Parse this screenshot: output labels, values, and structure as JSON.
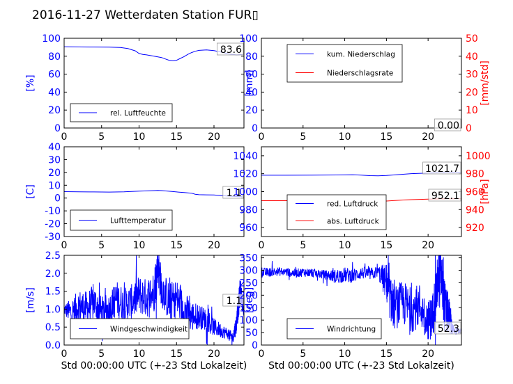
{
  "title": "2016-11-27 Wetterdaten Station FUR▯",
  "colors": {
    "primary": "#0000ff",
    "secondary": "#ff0000",
    "frame": "#000000"
  },
  "chart_data": [
    {
      "type": "line",
      "xlim": [
        0,
        24
      ],
      "ylim": [
        0,
        100
      ],
      "xticks": [
        0,
        5,
        10,
        15,
        20
      ],
      "yticks": [
        0,
        20,
        40,
        60,
        80,
        100
      ],
      "ylabel": "[%]",
      "xlabel": "",
      "legend": {
        "location": "lower-left",
        "entries": [
          "rel. Luftfeuchte"
        ]
      },
      "value_box": "83.6",
      "series": [
        {
          "name": "rel. Luftfeuchte",
          "color": "#0000ff",
          "axis": "left",
          "x": [
            0,
            2,
            4,
            6,
            7.5,
            8.5,
            9.5,
            10,
            10.5,
            11,
            12,
            13,
            13.5,
            14,
            14.5,
            15,
            15.5,
            16,
            16.5,
            17,
            17.5,
            18,
            19,
            20,
            21,
            22,
            23,
            23.8
          ],
          "y": [
            90.5,
            90.3,
            90.2,
            90.1,
            89.8,
            88.5,
            86,
            83,
            82,
            81.5,
            80,
            78.5,
            77,
            75.5,
            75,
            75.5,
            77.5,
            79.5,
            82,
            84,
            85.5,
            86.5,
            87,
            86.3,
            84.5,
            82.5,
            81.5,
            82
          ]
        }
      ]
    },
    {
      "type": "line",
      "xlim": [
        0,
        24
      ],
      "ylim": [
        0,
        100
      ],
      "y2lim": [
        0,
        50
      ],
      "xticks": [
        0,
        5,
        10,
        15,
        20
      ],
      "yticks": [
        0,
        20,
        40,
        60,
        80,
        100
      ],
      "y2ticks": [
        0,
        10,
        20,
        30,
        40,
        50
      ],
      "ylabel": "[mm]",
      "y2label": "[mm/std]",
      "xlabel": "",
      "legend": {
        "location": "upper-left",
        "entries": [
          "kum. Niederschlag",
          "Niederschlagsrate"
        ]
      },
      "value_box": "0.00",
      "series": [
        {
          "name": "kum. Niederschlag",
          "color": "#0000ff",
          "axis": "left",
          "x": [
            0,
            24
          ],
          "y": [
            0,
            0
          ]
        },
        {
          "name": "Niederschlagsrate",
          "color": "#ff0000",
          "axis": "right",
          "x": [
            0,
            24
          ],
          "y": [
            0,
            0
          ]
        }
      ]
    },
    {
      "type": "line",
      "xlim": [
        0,
        24
      ],
      "ylim": [
        -30,
        40
      ],
      "xticks": [
        0,
        5,
        10,
        15,
        20
      ],
      "yticks": [
        -30,
        -20,
        -10,
        0,
        10,
        20,
        30,
        40
      ],
      "ylabel": "[C]",
      "xlabel": "",
      "legend": {
        "location": "lower-left",
        "entries": [
          "Lufttemperatur"
        ]
      },
      "value_box": "1.1",
      "series": [
        {
          "name": "Lufttemperatur",
          "color": "#0000ff",
          "axis": "left",
          "x": [
            0,
            2,
            4,
            6,
            8,
            10,
            11,
            12,
            12.5,
            13,
            14,
            15,
            16,
            17,
            17.5,
            18,
            19,
            20,
            21,
            22,
            23,
            23.8
          ],
          "y": [
            5,
            4.9,
            4.8,
            4.7,
            4.9,
            5.4,
            5.6,
            5.8,
            6,
            5.8,
            5.3,
            4.8,
            4.3,
            3.8,
            3.0,
            2.6,
            2.5,
            2.4,
            1.9,
            1.5,
            1.2,
            1.1
          ]
        }
      ]
    },
    {
      "type": "line",
      "xlim": [
        0,
        24
      ],
      "ylim": [
        950,
        1050
      ],
      "y2lim": [
        910,
        1010
      ],
      "xticks": [
        0,
        5,
        10,
        15,
        20
      ],
      "yticks": [
        960,
        980,
        1000,
        1020,
        1040
      ],
      "y2ticks": [
        920,
        940,
        960,
        980,
        1000
      ],
      "ylabel": "",
      "y2label": "[hPa]",
      "xlabel": "",
      "legend": {
        "location": "lower-left",
        "entries": [
          "red. Luftdruck",
          "abs. Luftdruck"
        ]
      },
      "value_box": "1021.7",
      "value_box2": "952.1",
      "series": [
        {
          "name": "red. Luftdruck",
          "color": "#0000ff",
          "axis": "left",
          "x": [
            0,
            3,
            6,
            9,
            11,
            12,
            13,
            14,
            15,
            16,
            17,
            18,
            20,
            22,
            24
          ],
          "y": [
            1018.3,
            1018.3,
            1018.4,
            1018.6,
            1018.8,
            1018.4,
            1017.8,
            1017.7,
            1018.1,
            1018.7,
            1019.4,
            1020.1,
            1020.7,
            1021.3,
            1021.7
          ]
        },
        {
          "name": "abs. Luftdruck",
          "color": "#ff0000",
          "axis": "right",
          "x": [
            0,
            3,
            6,
            9,
            11,
            12,
            13,
            14,
            15,
            16,
            17,
            18,
            20,
            22,
            24
          ],
          "y": [
            949.9,
            949.9,
            949.9,
            950.0,
            950.1,
            949.7,
            949.2,
            949.1,
            949.5,
            950.1,
            950.7,
            951.1,
            951.6,
            951.9,
            952.1
          ]
        }
      ]
    },
    {
      "type": "line",
      "xlim": [
        0,
        24
      ],
      "ylim": [
        0,
        2.5
      ],
      "xticks": [
        0,
        5,
        10,
        15,
        20
      ],
      "yticks": [
        0,
        0.5,
        1.0,
        1.5,
        2.0,
        2.5
      ],
      "ylabel": "[m/s]",
      "xlabel": "Std 00:00:00 UTC (+-23 Std Lokalzeit)",
      "legend": {
        "location": "lower-left",
        "entries": [
          "Windgeschwindigkeit"
        ]
      },
      "value_box": "1.1",
      "series": [
        {
          "name": "Windgeschwindigkeit",
          "color": "#0000ff",
          "axis": "left",
          "x": [
            0,
            1,
            2,
            3,
            4,
            5,
            6,
            7,
            8,
            9,
            10,
            11,
            12,
            12.5,
            13,
            14,
            15,
            16,
            17,
            18,
            19,
            20,
            21,
            22,
            22.5,
            23,
            23.5,
            24
          ],
          "y": [
            1.0,
            0.9,
            1.1,
            1.0,
            1.2,
            0.9,
            1.0,
            1.3,
            1.1,
            1.2,
            1.4,
            1.3,
            1.5,
            2.3,
            1.6,
            1.2,
            1.3,
            1.0,
            0.8,
            0.8,
            0.7,
            0.5,
            0.4,
            0.3,
            0.2,
            0.6,
            1.5,
            1.0
          ],
          "noise": [
            0.15,
            0.4,
            0.45,
            0.5,
            0.5,
            0.45,
            0.45,
            0.5,
            0.5,
            0.5,
            0.55,
            0.55,
            0.6,
            0.6,
            0.55,
            0.55,
            0.55,
            0.5,
            0.45,
            0.35,
            0.3,
            0.25,
            0.2,
            0.15,
            0.15,
            0.3,
            0.4,
            0.2
          ]
        }
      ]
    },
    {
      "type": "line",
      "xlim": [
        0,
        24
      ],
      "ylim": [
        0,
        360
      ],
      "xticks": [
        0,
        5,
        10,
        15,
        20
      ],
      "yticks": [
        0,
        50,
        100,
        150,
        200,
        250,
        300,
        350
      ],
      "ylabel": "[deg]",
      "xlabel": "Std 00:00:00 UTC (+-23 Std Lokalzeit)",
      "legend": {
        "location": "lower-left",
        "entries": [
          "Windrichtung"
        ]
      },
      "value_box": "52.3",
      "series": [
        {
          "name": "Windrichtung",
          "color": "#0000ff",
          "axis": "left",
          "x": [
            0,
            1,
            2,
            3,
            4,
            5,
            6,
            7,
            8,
            9,
            10,
            11,
            12,
            13,
            14,
            15,
            15.5,
            16,
            17,
            18,
            19,
            20,
            20.5,
            21,
            21.5,
            22,
            22.5,
            23,
            24
          ],
          "y": [
            290,
            292,
            295,
            293,
            288,
            292,
            290,
            285,
            280,
            275,
            282,
            278,
            290,
            285,
            292,
            250,
            180,
            150,
            170,
            140,
            160,
            100,
            110,
            220,
            300,
            150,
            120,
            60,
            55
          ],
          "noise": [
            20,
            18,
            18,
            18,
            18,
            18,
            18,
            18,
            20,
            30,
            30,
            30,
            25,
            25,
            25,
            80,
            90,
            90,
            90,
            90,
            90,
            80,
            90,
            110,
            120,
            110,
            80,
            20,
            10
          ]
        }
      ]
    }
  ]
}
